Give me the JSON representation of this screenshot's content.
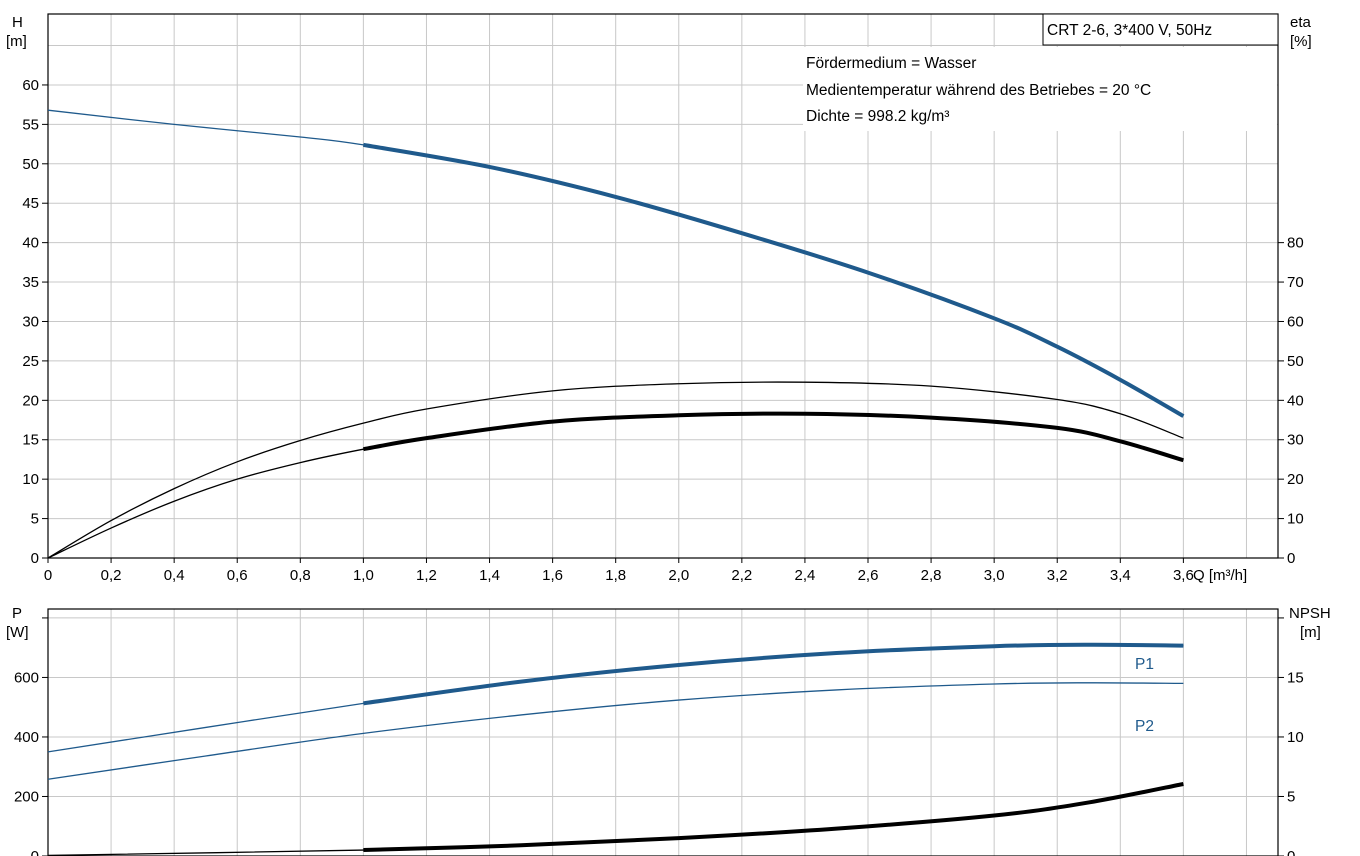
{
  "chart_data": [
    {
      "type": "line",
      "title": "CRT 2-6, 3*400 V, 50Hz",
      "annotations": [
        "Fördermedium = Wasser",
        "Medientemperatur während des Betriebes = 20 °C",
        "Dichte = 998.2 kg/m³"
      ],
      "ylabel_left": [
        "H",
        "[m]"
      ],
      "ylabel_right": [
        "eta",
        "[%]"
      ],
      "xlabel": "Q [m³/h]",
      "xlim": [
        0,
        3.9
      ],
      "ylim_left": [
        0,
        69
      ],
      "ylim_right": [
        0,
        138
      ],
      "x_ticks": [
        "0",
        "0,2",
        "0,4",
        "0,6",
        "0,8",
        "1,0",
        "1,2",
        "1,4",
        "1,6",
        "1,8",
        "2,0",
        "2,2",
        "2,4",
        "2,6",
        "2,8",
        "3,0",
        "3,2",
        "3,4",
        "3,6"
      ],
      "y_ticks_left": [
        "0",
        "5",
        "10",
        "15",
        "20",
        "25",
        "30",
        "35",
        "40",
        "45",
        "50",
        "55",
        "60"
      ],
      "y_ticks_right": [
        "0",
        "10",
        "20",
        "30",
        "40",
        "50",
        "60",
        "70",
        "80"
      ],
      "grid": true,
      "series": [
        {
          "axis": "left",
          "color": "#1f5a8c",
          "x": [
            0,
            0.4,
            0.8,
            1.0,
            1.4,
            1.8,
            2.2,
            2.6,
            3.0,
            3.2,
            3.4,
            3.6
          ],
          "values": [
            56.8,
            55.0,
            53.4,
            52.4,
            49.6,
            45.8,
            41.2,
            36.2,
            30.4,
            26.8,
            22.6,
            18.0
          ],
          "operating_range": [
            1.0,
            3.6
          ]
        },
        {
          "axis": "right",
          "color": "#000000",
          "x": [
            0,
            0.2,
            0.4,
            0.6,
            0.8,
            1.0,
            1.2,
            1.6,
            2.0,
            2.4,
            2.8,
            3.2,
            3.4,
            3.6
          ],
          "values": [
            0,
            9.5,
            17.6,
            24.4,
            29.8,
            34.2,
            37.8,
            42.4,
            44.2,
            44.6,
            43.6,
            40.2,
            36.6,
            30.4
          ],
          "operating_range": null
        },
        {
          "axis": "right",
          "color": "#000000",
          "x": [
            0,
            0.2,
            0.4,
            0.6,
            0.8,
            1.0,
            1.2,
            1.6,
            2.0,
            2.4,
            2.8,
            3.2,
            3.4,
            3.6
          ],
          "values": [
            0,
            7.6,
            14.4,
            20.0,
            24.2,
            27.6,
            30.4,
            34.6,
            36.2,
            36.6,
            35.6,
            33.0,
            29.6,
            24.8
          ],
          "operating_range": [
            1.0,
            3.6
          ]
        }
      ]
    },
    {
      "type": "line",
      "ylabel_left": [
        "P",
        "[W]"
      ],
      "ylabel_right": [
        "NPSH",
        "[m]"
      ],
      "xlim": [
        0,
        3.9
      ],
      "ylim_left": [
        0,
        830
      ],
      "ylim_right": [
        0,
        20.75
      ],
      "y_ticks_left": [
        "0",
        "200",
        "400",
        "600"
      ],
      "y_ticks_right": [
        "0",
        "5",
        "10",
        "15"
      ],
      "grid": true,
      "series": [
        {
          "name": "P1",
          "axis": "left",
          "color": "#1f5a8c",
          "x": [
            0,
            0.5,
            1.0,
            1.5,
            2.0,
            2.5,
            3.0,
            3.3,
            3.6
          ],
          "values": [
            350,
            432,
            513,
            586,
            642,
            682,
            705,
            710,
            707
          ],
          "operating_range": [
            1.0,
            3.6
          ]
        },
        {
          "name": "P2",
          "axis": "left",
          "color": "#1f5a8c",
          "x": [
            0,
            0.5,
            1.0,
            1.5,
            2.0,
            2.5,
            3.0,
            3.3,
            3.6
          ],
          "values": [
            258,
            336,
            412,
            474,
            524,
            558,
            578,
            582,
            580
          ],
          "operating_range": null
        },
        {
          "axis": "right",
          "color": "#000000",
          "x": [
            0,
            1.0,
            1.5,
            2.0,
            2.5,
            3.0,
            3.3,
            3.6
          ],
          "values": [
            0.05,
            0.5,
            0.9,
            1.5,
            2.3,
            3.4,
            4.5,
            6.05
          ],
          "operating_range": [
            1.0,
            3.6
          ]
        }
      ]
    }
  ]
}
